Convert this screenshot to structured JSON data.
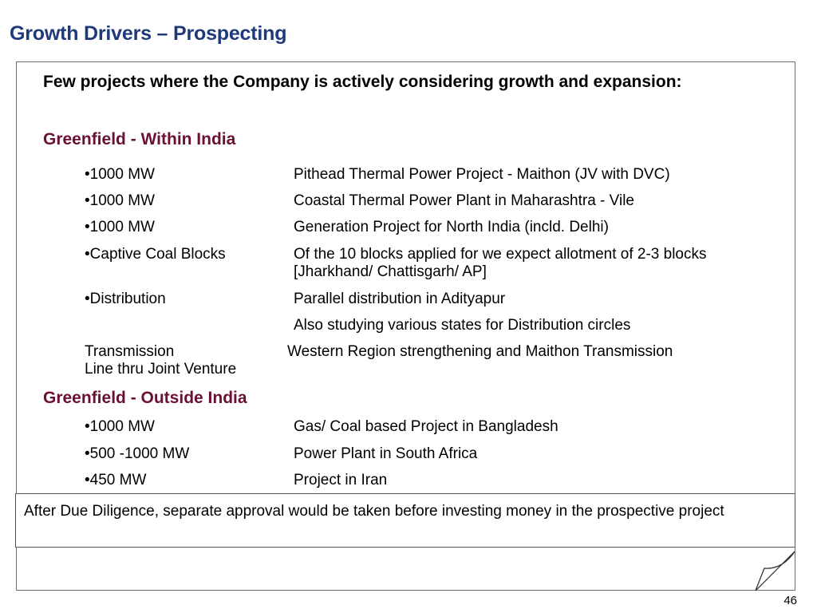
{
  "title": "Growth Drivers – Prospecting",
  "intro": "Few projects where the Company is actively considering growth and expansion:",
  "sections": [
    {
      "heading": "Greenfield - Within India",
      "items": [
        {
          "label": "•1000 MW",
          "desc": "Pithead Thermal Power Project - Maithon (JV with DVC)"
        },
        {
          "label": "•1000 MW",
          "desc": "Coastal Thermal Power Plant in Maharashtra - Vile"
        },
        {
          "label": "•1000 MW",
          "desc": "Generation Project for North India (incld. Delhi)"
        },
        {
          "label": "•Captive Coal Blocks",
          "desc": "Of the 10 blocks applied for we expect allotment of 2-3 blocks [Jharkhand/ Chattisgarh/ AP]"
        },
        {
          "label": "•Distribution",
          "desc": "Parallel distribution in Adityapur"
        },
        {
          "label": "",
          "desc": "Also studying various states for Distribution circles"
        }
      ],
      "transmission": {
        "label": "Transmission",
        "desc": "Western Region strengthening and Maithon Transmission",
        "continuation": "Line thru Joint Venture"
      }
    },
    {
      "heading": "Greenfield - Outside India",
      "items": [
        {
          "label": "•1000 MW",
          "desc": "Gas/ Coal based Project in Bangladesh"
        },
        {
          "label": "•500 -1000 MW",
          "desc": "Power Plant in South Africa"
        },
        {
          "label": "•450 MW",
          "desc": "Project in Iran"
        }
      ]
    }
  ],
  "note": "After Due Diligence, separate approval would be taken before investing money in the prospective project",
  "page_number": "46"
}
